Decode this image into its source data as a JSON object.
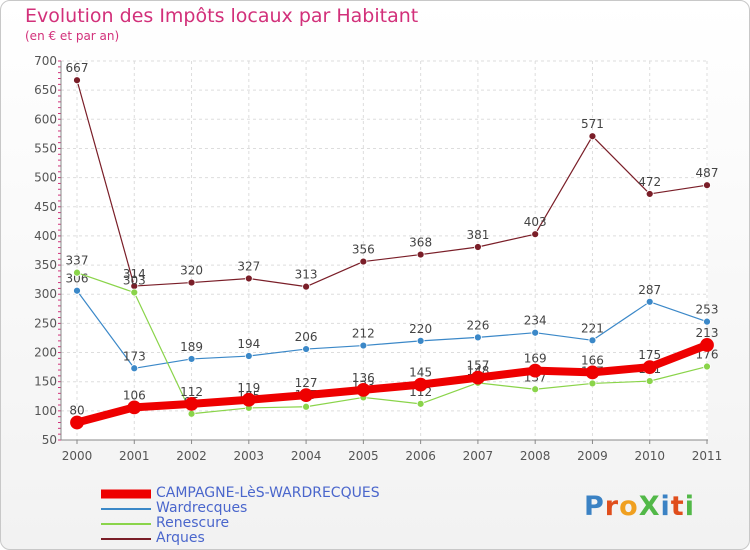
{
  "header": {
    "title": "Evolution des Impôts locaux par Habitant",
    "subtitle": "(en € et par an)"
  },
  "logo": {
    "text": "ProXiti",
    "colors": [
      "#3b82c4",
      "#e04e1c",
      "#f0a020",
      "#52b848",
      "#3b82c4",
      "#e04e1c",
      "#52b848"
    ]
  },
  "chart_data": {
    "type": "line",
    "title": "Evolution des Impôts locaux par Habitant",
    "subtitle": "(en € et par an)",
    "xlabel": "",
    "ylabel": "",
    "ylim": [
      50,
      700
    ],
    "yticks": [
      50,
      100,
      150,
      200,
      250,
      300,
      350,
      400,
      450,
      500,
      550,
      600,
      650,
      700
    ],
    "grid": true,
    "categories": [
      "2000",
      "2001",
      "2002",
      "2003",
      "2004",
      "2005",
      "2006",
      "2007",
      "2008",
      "2009",
      "2010",
      "2011"
    ],
    "series": [
      {
        "name": "Arques",
        "color": "#7a1e28",
        "values": [
          667,
          314,
          320,
          327,
          313,
          356,
          368,
          381,
          403,
          571,
          472,
          487
        ]
      },
      {
        "name": "Wardrecques",
        "color": "#3b88c8",
        "values": [
          306,
          173,
          189,
          194,
          206,
          212,
          220,
          226,
          234,
          221,
          287,
          253
        ]
      },
      {
        "name": "Renescure",
        "color": "#8ad44a",
        "values": [
          337,
          303,
          95,
          105,
          107,
          123,
          112,
          148,
          137,
          147,
          151,
          176
        ]
      },
      {
        "name": "CAMPAGNE-LèS-WARDRECQUES",
        "color": "#ee0000",
        "values": [
          80,
          106,
          112,
          119,
          127,
          136,
          145,
          157,
          169,
          166,
          175,
          213
        ]
      }
    ],
    "legend": {
      "position": "bottom-left",
      "order": [
        "CAMPAGNE-LèS-WARDRECQUES",
        "Wardrecques",
        "Renescure",
        "Arques"
      ]
    }
  }
}
